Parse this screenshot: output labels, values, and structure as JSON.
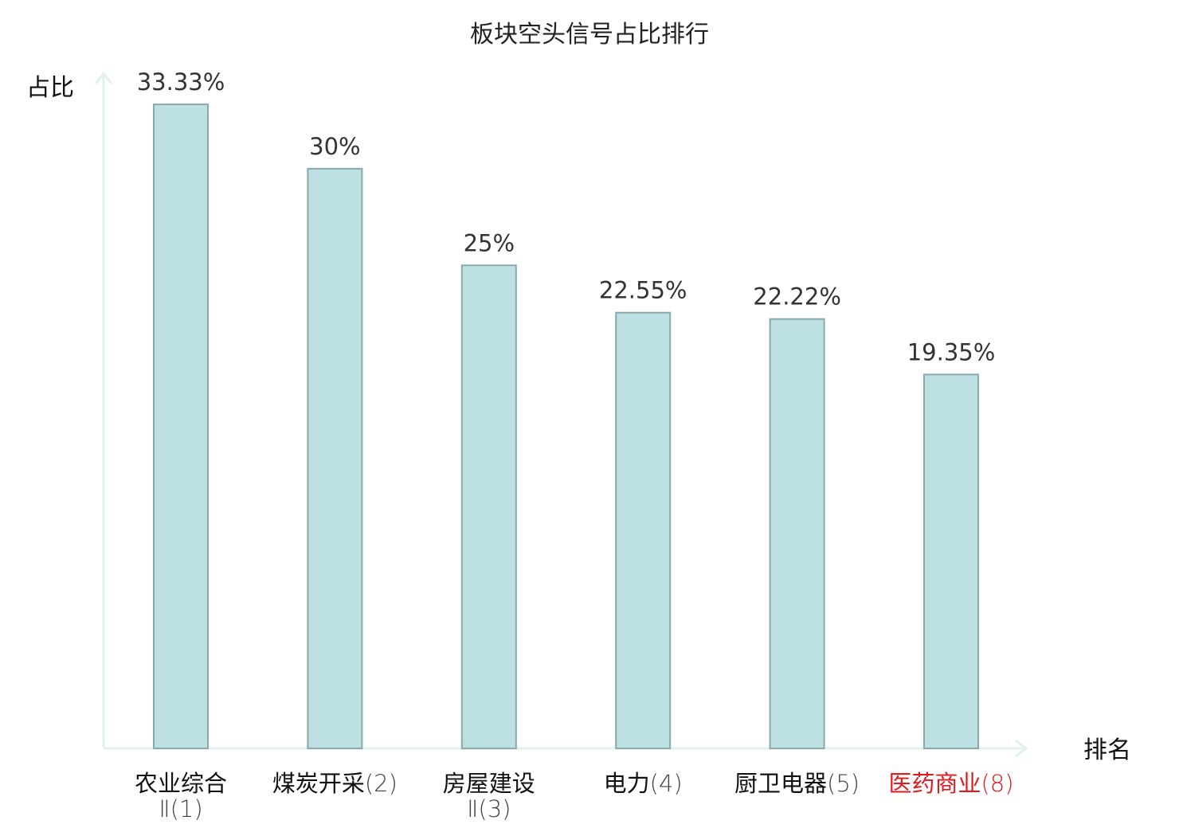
{
  "chart_data": {
    "type": "bar",
    "title": "板块空头信号占比排行",
    "ylabel": "占比",
    "xlabel": "排名",
    "ylim": [
      0,
      35
    ],
    "grid": false,
    "categories": [
      {
        "name": "农业综合",
        "name_line2": "Ⅱ",
        "rank": "(1)",
        "highlight": false
      },
      {
        "name": "煤炭开采",
        "name_line2": "",
        "rank": "(2)",
        "highlight": false
      },
      {
        "name": "房屋建设",
        "name_line2": "Ⅱ",
        "rank": "(3)",
        "highlight": false
      },
      {
        "name": "电力",
        "name_line2": "",
        "rank": "(4)",
        "highlight": false
      },
      {
        "name": "厨卫电器",
        "name_line2": "",
        "rank": "(5)",
        "highlight": false
      },
      {
        "name": "医药商业",
        "name_line2": "",
        "rank": "(8)",
        "highlight": true
      }
    ],
    "values": [
      33.33,
      30,
      25,
      22.55,
      22.22,
      19.35
    ],
    "value_labels": [
      "33.33%",
      "30%",
      "25%",
      "22.55%",
      "22.22%",
      "19.35%"
    ],
    "colors": {
      "bar_fill": "#bde0e2",
      "bar_stroke": "#8aa9aa",
      "axis": "#e0f1ef",
      "category_text": "#111111",
      "category_number": "#444444",
      "highlight_text": "#e0191e"
    }
  }
}
